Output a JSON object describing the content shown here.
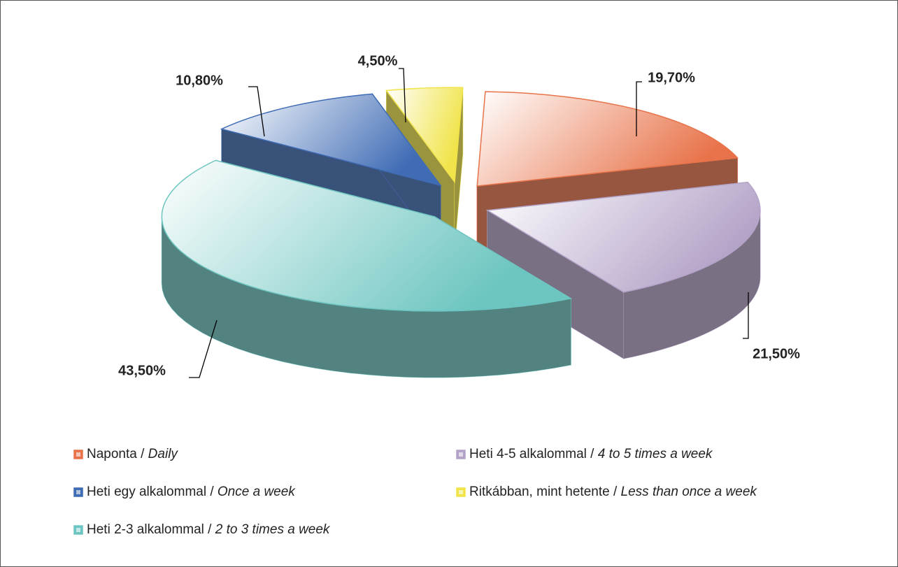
{
  "chart_data": {
    "type": "pie",
    "categories": [
      "Naponta / Daily",
      "Heti 4-5 alkalommal / 4 to 5 times a week",
      "Heti 2-3 alkalommal / 2 to 3 times a week",
      "Heti egy alkalommal / Once a week",
      "Ritkábban, mint hetente / Less than once a week"
    ],
    "values": [
      19.7,
      21.5,
      43.5,
      10.8,
      4.5
    ],
    "value_labels": [
      "19,70%",
      "21,50%",
      "43,50%",
      "10,80%",
      "4,50%"
    ],
    "colors": [
      "#e8734a",
      "#b3a2c7",
      "#6cc5c0",
      "#3f6cb5",
      "#f0e44a"
    ],
    "legend": "bottom"
  }
}
